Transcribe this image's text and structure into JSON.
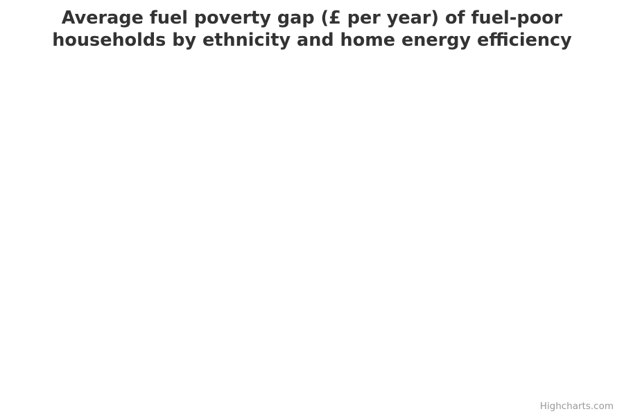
{
  "chart_data": {
    "type": "bar",
    "title_line1": "Average fuel poverty gap (£ per year) of fuel-poor",
    "title_line2": "households by ethnicity and home energy efficiency",
    "categories": [],
    "series": [],
    "legend": "none",
    "grid": false
  },
  "credits": {
    "label": "Highcharts.com"
  },
  "colors": {
    "title": "#333333",
    "credits": "#999999",
    "background": "#ffffff"
  }
}
